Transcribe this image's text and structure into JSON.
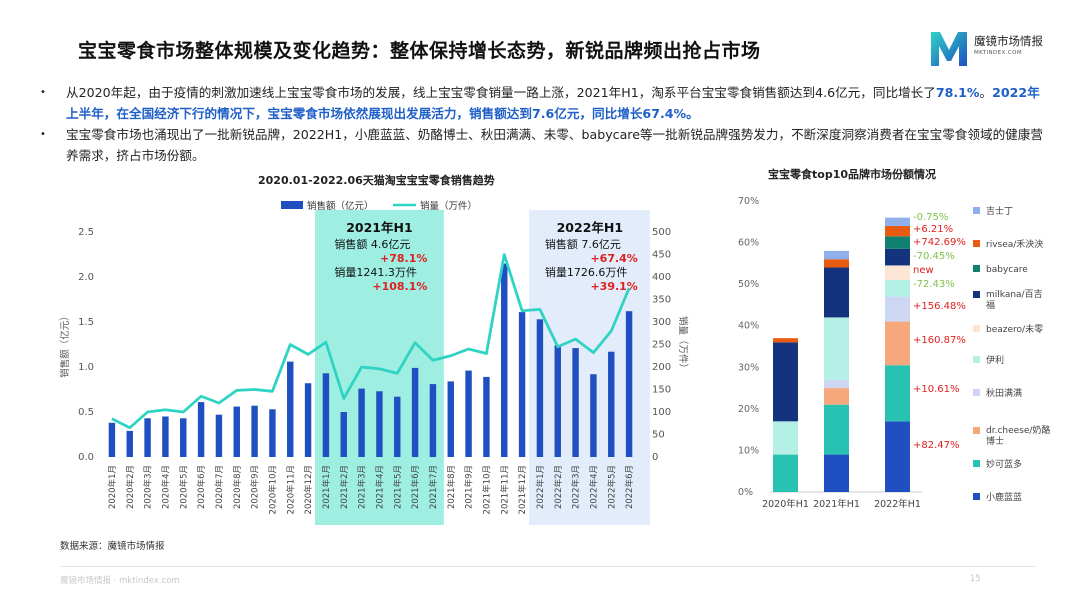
{
  "page": {
    "title": "宝宝零食市场整体规模及变化趋势：整体保持增长态势，新锐品牌频出抢占市场",
    "logo_name": "魔镜市场情报",
    "logo_sub": "MKTINDEX.COM",
    "bullets": [
      {
        "parts": [
          {
            "t": "从2020年起，由于疫情的刺激加速线上宝宝零食市场的发展，线上宝宝零食销量一路上涨，2021年H1，淘系平台宝宝零食销售额达到4.6亿元，同比增长了",
            "b": false
          },
          {
            "t": "78.1%",
            "b": true
          },
          {
            "t": "。",
            "b": false
          },
          {
            "t": "2022年上半年，在全国经济下行的情况下，宝宝零食市场依然展现出发展活力，销售额达到7.6亿元，同比增长67.4%。",
            "b": true
          }
        ]
      },
      {
        "parts": [
          {
            "t": "宝宝零食市场也涌现出了一批新锐品牌，2022H1，小鹿蓝蓝、奶酪博士、秋田满满、未零、babycare等一批新锐品牌强势发力，不断深度洞察消费者在宝宝零食领域的健康营养需求，挤占市场份额。",
            "b": false
          }
        ]
      }
    ],
    "source": "数据来源：魔镜市场情报",
    "footer": "魔镜市场情报 · mktindex.com",
    "page_number": "15"
  },
  "colors": {
    "bar": "#1f4fc1",
    "line": "#2fd3c4",
    "highlight1": "#9eeee2",
    "highlight2": "#e3ecfb",
    "red": "#e02020",
    "blue_text": "#1f5fc8"
  },
  "chart_data": [
    {
      "type": "bar",
      "title": "2020.01-2022.06天猫淘宝宝宝零食销售趋势",
      "legend": [
        "销售额（亿元）",
        "销量（万件）"
      ],
      "categories": [
        "2020年1月",
        "2020年2月",
        "2020年3月",
        "2020年4月",
        "2020年5月",
        "2020年6月",
        "2020年7月",
        "2020年8月",
        "2020年9月",
        "2020年10月",
        "2020年11月",
        "2020年12月",
        "2021年1月",
        "2021年2月",
        "2021年3月",
        "2021年4月",
        "2021年5月",
        "2021年6月",
        "2021年7月",
        "2021年8月",
        "2021年9月",
        "2021年10月",
        "2021年11月",
        "2021年12月",
        "2022年1月",
        "2022年2月",
        "2022年3月",
        "2022年4月",
        "2022年5月",
        "2022年6月"
      ],
      "series": [
        {
          "name": "销售额（亿元）",
          "type": "bar",
          "axis": "left",
          "values": [
            0.38,
            0.29,
            0.43,
            0.45,
            0.43,
            0.61,
            0.47,
            0.56,
            0.57,
            0.53,
            1.06,
            0.82,
            0.93,
            0.5,
            0.76,
            0.73,
            0.67,
            0.99,
            0.81,
            0.84,
            0.96,
            0.89,
            2.15,
            1.61,
            1.53,
            1.24,
            1.21,
            0.92,
            1.17,
            1.62
          ]
        },
        {
          "name": "销量（万件）",
          "type": "line",
          "axis": "right",
          "values": [
            85,
            65,
            100,
            105,
            100,
            135,
            120,
            148,
            150,
            146,
            250,
            228,
            255,
            130,
            200,
            196,
            186,
            254,
            215,
            225,
            240,
            230,
            450,
            325,
            328,
            245,
            262,
            232,
            280,
            375
          ]
        }
      ],
      "ylabel_left": "销售额（亿元）",
      "ylabel_right": "销量（万件）",
      "ylim_left": [
        0,
        2.5
      ],
      "yticks_left": [
        "0.0",
        "0.5",
        "1.0",
        "1.5",
        "2.0",
        "2.5"
      ],
      "ylim_right": [
        0,
        500
      ],
      "yticks_right": [
        "0",
        "50",
        "100",
        "150",
        "200",
        "250",
        "300",
        "350",
        "400",
        "450",
        "500"
      ],
      "annotations": [
        {
          "period": "2021年H1",
          "sales_label": "销售额 4.6亿元",
          "sales_growth": "+78.1%",
          "volume_label": "销量1241.3万件",
          "volume_growth": "+108.1%"
        },
        {
          "period": "2022年H1",
          "sales_label": "销售额 7.6亿元",
          "sales_growth": "+67.4%",
          "volume_label": "销量1726.6万件",
          "volume_growth": "+39.1%"
        }
      ]
    },
    {
      "type": "stacked_bar",
      "title": "宝宝零食top10品牌市场份额情况",
      "categories": [
        "2020年H1",
        "2021年H1",
        "2022年H1"
      ],
      "ylim": [
        0,
        70
      ],
      "yticks": [
        "0%",
        "10%",
        "20%",
        "30%",
        "40%",
        "50%",
        "60%",
        "70%"
      ],
      "series": [
        {
          "name": "小鹿蓝蓝",
          "color": "#1f4fc1",
          "values": [
            0,
            9,
            17
          ]
        },
        {
          "name": "妙可蓝多",
          "color": "#27c2b1",
          "values": [
            9,
            12,
            13.5
          ]
        },
        {
          "name": "dr.cheese/奶酪博士",
          "color": "#f6a77c",
          "values": [
            0,
            4,
            10.5
          ]
        },
        {
          "name": "秋田满满",
          "color": "#cdd7f3",
          "values": [
            0,
            2,
            6
          ]
        },
        {
          "name": "伊利",
          "color": "#b5f0e6",
          "values": [
            8,
            15,
            4
          ]
        },
        {
          "name": "beazero/未零",
          "color": "#fde5d6",
          "values": [
            0,
            0,
            3.5
          ]
        },
        {
          "name": "milkana/百吉福",
          "color": "#14337e",
          "values": [
            19,
            12,
            4
          ]
        },
        {
          "name": "babycare",
          "color": "#10806f",
          "values": [
            0,
            0,
            3
          ]
        },
        {
          "name": "rivsea/禾泱泱",
          "color": "#e85c12",
          "values": [
            1,
            2,
            2.5
          ]
        },
        {
          "name": "吉士丁",
          "color": "#8fb0ec",
          "values": [
            0,
            2,
            2
          ]
        }
      ],
      "growth_labels": [
        {
          "series": "吉士丁",
          "text": "-0.75%",
          "color": "#7ec24a"
        },
        {
          "series": "rivsea/禾泱泱",
          "text": "+6.21%",
          "color": "#e02020"
        },
        {
          "series": "babycare",
          "text": "+742.69%",
          "color": "#e02020"
        },
        {
          "series": "milkana/百吉福",
          "text": "-70.45%",
          "color": "#7ec24a"
        },
        {
          "series": "beazero/未零",
          "text": "new",
          "color": "#e02020"
        },
        {
          "series": "伊利",
          "text": "-72.43%",
          "color": "#7ec24a"
        },
        {
          "series": "秋田满满",
          "text": "+156.48%",
          "color": "#e02020"
        },
        {
          "series": "dr.cheese/奶酪博士",
          "text": "+160.87%",
          "color": "#e02020"
        },
        {
          "series": "妙可蓝多",
          "text": "+10.61%",
          "color": "#e02020"
        },
        {
          "series": "小鹿蓝蓝",
          "text": "+82.47%",
          "color": "#e02020"
        }
      ],
      "legend_display": [
        "吉士丁",
        "rivsea/禾泱泱",
        "babycare",
        "milkana/百吉福",
        "beazero/未零",
        "伊利",
        "秋田满满",
        "dr.cheese/奶酪博士",
        "妙可蓝多",
        "小鹿蓝蓝"
      ]
    }
  ]
}
